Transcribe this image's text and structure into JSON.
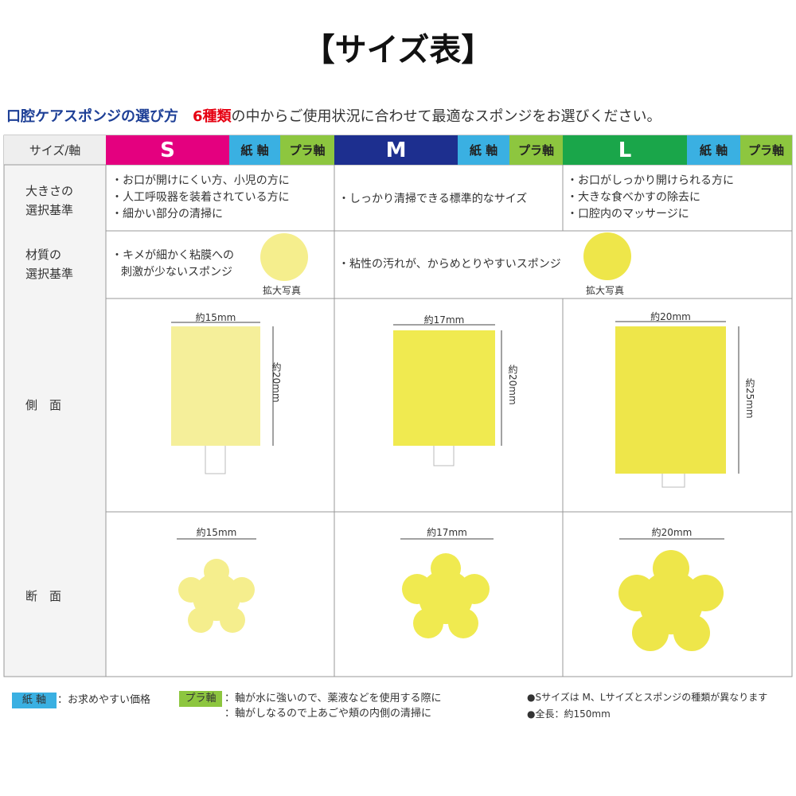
{
  "title": "【サイズ表】",
  "subtitle": {
    "lead": "口腔ケアスポンジの選び方",
    "highlight": "6種類",
    "rest": "の中からご使用状況に合わせて最適なスポンジをお選びください。"
  },
  "table": {
    "header": {
      "label": "サイズ/軸",
      "sizes": [
        {
          "name": "S",
          "paper": "紙 軸",
          "plastic": "プラ軸"
        },
        {
          "name": "M",
          "paper": "紙 軸",
          "plastic": "プラ軸"
        },
        {
          "name": "L",
          "paper": "紙 軸",
          "plastic": "プラ軸"
        }
      ]
    },
    "size_row": {
      "label": [
        "大きさの",
        "選択基準"
      ],
      "cells": [
        [
          "・お口が開けにくい方、小児の方に",
          "・人工呼吸器を装着されている方に",
          "・細かい部分の清掃に"
        ],
        [
          "・しっかり清掃できる標準的なサイズ"
        ],
        [
          "・お口がしっかり開けられる方に",
          "・大きな食べかすの除去に",
          "・口腔内のマッサージに"
        ]
      ]
    },
    "material_row": {
      "label": [
        "材質の",
        "選択基準"
      ],
      "cells": [
        {
          "lines": [
            "・キメが細かく粘膜への",
            "刺激が少ないスポンジ"
          ],
          "caption": "拡大写真"
        },
        {
          "lines": [
            "・粘性の汚れが、からめとりやすいスポンジ"
          ],
          "caption": "拡大写真"
        }
      ]
    },
    "side_row": {
      "label": "側　面",
      "cells": [
        {
          "width": "約15mm",
          "height": "約20mm"
        },
        {
          "width": "約17mm",
          "height": "約20mm"
        },
        {
          "width": "約20mm",
          "height": "約25mm"
        }
      ]
    },
    "cross_row": {
      "label": "断　面",
      "cells": [
        {
          "width": "約15mm"
        },
        {
          "width": "約17mm"
        },
        {
          "width": "約20mm"
        }
      ]
    }
  },
  "footer": {
    "paper": {
      "tag": "紙 軸",
      "text": "：お求めやすい価格"
    },
    "plastic": {
      "tag": "プラ軸",
      "lines": [
        "：軸が水に強いので、薬液などを使用する際に",
        "：軸がしなるので上あごや頬の内側の清掃に"
      ]
    },
    "notes": [
      "●Sサイズは M、Lサイズとスポンジの種類が異なります",
      "●全長：約150mm"
    ]
  }
}
